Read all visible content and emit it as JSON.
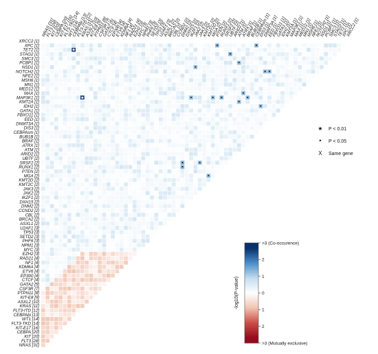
{
  "chart_data": {
    "type": "heatmap",
    "genes": [
      "XRCC2 [1]",
      "XPC [1]",
      "TET2 [1]",
      "STAG2 [1]",
      "SMC3 [1]",
      "PCBP1 [1]",
      "NSD1 [1]",
      "NOTCH2 [1]",
      "NFE2 [1]",
      "MSH6 [1]",
      "MN1 [1]",
      "MED12 [1]",
      "MAX [1]",
      "MAP3K1 [1]",
      "KMT2A [1]",
      "IDH2 [1]",
      "GATA1 [1]",
      "FBXO11 [1]",
      "EED [1]",
      "DNMT3A [1]",
      "DIS3 [1]",
      "CEBPAsm [1]",
      "BUB1B [1]",
      "BRAF [1]",
      "ATRX [1]",
      "ATM [1]",
      "ARID2 [1]",
      "UBTF [2]",
      "SRSF2 [2]",
      "RUNX1 [2]",
      "PTEN [2]",
      "MGA [2]",
      "KMT2D [2]",
      "KMT2C [2]",
      "JAK3 [2]",
      "JAK2 [2]",
      "IKZF1 [2]",
      "DXH15 [2]",
      "DNM2 [2]",
      "CCND2 [2]",
      "CBL [2]",
      "BRCA2 [2]",
      "ASXL1 [2]",
      "U2AF1 [3]",
      "TP53 [3]",
      "SETD2 [3]",
      "PHF6 [3]",
      "NPM1 [3]",
      "MYC [3]",
      "EZH2 [3]",
      "RAD21 [4]",
      "NF1 [4]",
      "KDM6A [4]",
      "ETV6 [4]",
      "EP300 [4]",
      "CTCF [4]",
      "GATA2 [5]",
      "CSF3R [7]",
      "PTPN11 [8]",
      "KIT-E8 [9]",
      "ASXL2 [10]",
      "KRAS [11]",
      "FLT3-ITD [12]",
      "CEBPAbi [13]",
      "WT1 [14]",
      "FLT3-TKD [14]",
      "KIT-E17 [16]",
      "CEBPA [20]",
      "KIT [20]",
      "FLT3 [28]",
      "NRAS [31]"
    ],
    "value_label": "-log10(P-value)",
    "colorbar": {
      "ticks": [
        ">3 (Co-occurence)",
        "2",
        "1",
        "0",
        "1",
        "2",
        ">3 (Mutually exclusive)"
      ]
    },
    "legend": [
      {
        "symbol": "★",
        "label": "P < 0.01"
      },
      {
        "symbol": "•",
        "label": "P < 0.05"
      },
      {
        "symbol": "X",
        "label": "Same gene"
      }
    ],
    "cells": [
      {
        "row": "XRCC2 [1]",
        "col": "MSH6 [1]",
        "value": 3.5,
        "mark": "star"
      },
      {
        "row": "TET2 [1]",
        "col": "NOTCH2 [1]",
        "value": 3.5,
        "mark": "star"
      },
      {
        "row": "XPC [1]",
        "col": "EZH2 [3]",
        "value": 1.5,
        "mark": "dot"
      },
      {
        "row": "XPC [1]",
        "col": "CBL [2]",
        "value": 1.5,
        "mark": "dot"
      },
      {
        "row": "STAG2 [1]",
        "col": "U2AF1 [3]",
        "value": 1.5,
        "mark": "dot"
      },
      {
        "row": "PCBP1 [1]",
        "col": "SETD2 [3]",
        "value": 1.4,
        "mark": "dot"
      },
      {
        "row": "NSD1 [1]",
        "col": "JAK2 [2]",
        "value": 1.4,
        "mark": "dot"
      },
      {
        "row": "NOTCH2 [1]",
        "col": "KDM6A [4]",
        "value": 1.4,
        "mark": "dot"
      },
      {
        "row": "NOTCH2 [1]",
        "col": "NF1 [4]",
        "value": 1.4,
        "mark": "dot"
      },
      {
        "row": "MAX [1]",
        "col": "PHF6 [3]",
        "value": 1.4,
        "mark": "dot"
      },
      {
        "row": "MAP3K1 [1]",
        "col": "NPM1 [3]",
        "value": 1.4,
        "mark": "dot"
      },
      {
        "row": "MAP3K1 [1]",
        "col": "BRCA2 [2]",
        "value": 1.5,
        "mark": "dot"
      },
      {
        "row": "MAP3K1 [1]",
        "col": "JAK3 [2]",
        "value": 1.4,
        "mark": "dot"
      },
      {
        "row": "MAP3K1 [1]",
        "col": "CCND2 [2]",
        "value": 1.4,
        "mark": "dot"
      },
      {
        "row": "MAP3K1 [1]",
        "col": "MSH6 [1]",
        "value": 3.5,
        "mark": "star"
      },
      {
        "row": "KMT2A [1]",
        "col": "SETD2 [3]",
        "value": 1.4,
        "mark": "dot"
      },
      {
        "row": "IDH2 [1]",
        "col": "RAD21 [4]",
        "value": 1.4,
        "mark": "dot"
      },
      {
        "row": "EED [1]",
        "col": "CSF3R [7]",
        "value": 1.4,
        "mark": "dot"
      },
      {
        "row": "ATM [1]",
        "col": "PHF6 [3]",
        "value": 1.4,
        "mark": "dot"
      },
      {
        "row": "SRSF2 [2]",
        "col": "KMT2D [2]",
        "value": 1.5,
        "mark": "dot"
      },
      {
        "row": "SRSF2 [2]",
        "col": "IKZF1 [2]",
        "value": 1.4,
        "mark": "dot"
      },
      {
        "row": "RUNX1 [2]",
        "col": "KMT2D [2]",
        "value": 1.5,
        "mark": "dot"
      },
      {
        "row": "PTEN [2]",
        "col": "BRCA2 [2]",
        "value": 1.4,
        "mark": "dot"
      },
      {
        "row": "MGA [2]",
        "col": "DNM2 [2]",
        "value": 1.4,
        "mark": "dot"
      },
      {
        "row": "U2AF1 [3]",
        "col": "CEBPAbi [13]",
        "value": 3.6,
        "mark": "star"
      },
      {
        "row": "PHF6 [3]",
        "col": "EZH2 [3]",
        "value": 3.5,
        "mark": "star"
      },
      {
        "row": "ETV6 [4]",
        "col": "KIT-E8 [9]",
        "value": 1.4,
        "mark": "dot"
      },
      {
        "row": "ETV6 [4]",
        "col": "GATA2 [5]",
        "value": 1.4,
        "mark": "dot"
      },
      {
        "row": "KIT-E8 [9]",
        "col": "NRAS [31]",
        "value": 3.8,
        "mark": "star"
      },
      {
        "row": "ASXL2 [10]",
        "col": "NRAS [31]",
        "value": 3.2,
        "mark": "dot"
      },
      {
        "row": "ASXL2 [10]",
        "col": "FLT3 [28]",
        "value": 1.4,
        "mark": "dot"
      },
      {
        "row": "ASXL2 [10]",
        "col": "KIT-E17 [16]",
        "value": 1.4,
        "mark": "dot"
      },
      {
        "row": "FLT3-ITD [12]",
        "col": "KIT [20]",
        "value": 1.6,
        "mark": "dot"
      },
      {
        "row": "CEBPAbi [13]",
        "col": "FLT3 [28]",
        "value": 2.5,
        "mark": "dot"
      },
      {
        "row": "WT1 [14]",
        "col": "FLT3 [28]",
        "value": 2.0,
        "mark": "dot"
      },
      {
        "row": "FLT3-TKD [14]",
        "col": "NRAS [31]",
        "value": 3.8,
        "mark": "star"
      },
      {
        "row": "FLT3-TKD [14]",
        "col": "KIT [20]",
        "value": 3.5,
        "mark": "star"
      },
      {
        "row": "KIT-E17 [16]",
        "col": "FLT3 [28]",
        "value": 2.3,
        "mark": "dot"
      },
      {
        "row": "CEBPA [20]",
        "col": "KIT [20]",
        "value": 0.0,
        "mark": "same"
      },
      {
        "row": "CEBPA [20]",
        "col": "NRAS [31]",
        "value": 3.6,
        "mark": "star"
      }
    ]
  }
}
